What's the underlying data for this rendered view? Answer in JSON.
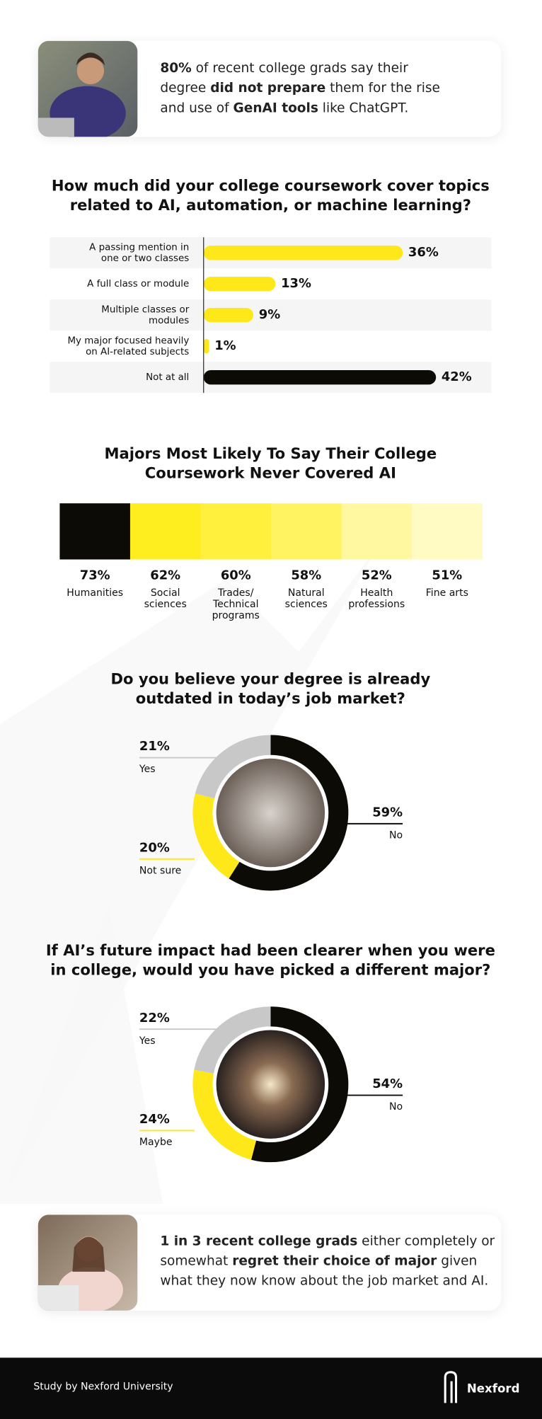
{
  "intro_card": {
    "lines": [
      [
        {
          "text": "80%",
          "bold": true
        },
        {
          "text": " of recent college grads say their"
        }
      ],
      [
        {
          "text": "degree "
        },
        {
          "text": "did not prepare",
          "bold": true
        },
        {
          "text": " them for the rise"
        }
      ],
      [
        {
          "text": "and use of "
        },
        {
          "text": "GenAI tools",
          "bold": true
        },
        {
          "text": " like ChatGPT."
        }
      ]
    ]
  },
  "chart_data": [
    {
      "type": "hbar",
      "title": "How much did your college coursework cover topics\nrelated to AI, automation, or machine learning?",
      "categories": [
        "A passing mention in\none or two classes",
        "A full class or module",
        "Multiple classes or\nmodules",
        "My major focused heavily\non AI-related subjects",
        "Not at all"
      ],
      "values": [
        36,
        13,
        9,
        1,
        42
      ],
      "value_labels": [
        "36%",
        "13%",
        "9%",
        "1%",
        "42%"
      ],
      "colors": [
        "#ffe81a",
        "#ffe81a",
        "#ffe81a",
        "#ffe81a",
        "#0d0b06"
      ],
      "xlim": [
        0,
        52
      ]
    },
    {
      "type": "strip",
      "title": "Majors Most Likely To Say Their College\nCoursework Never Covered AI",
      "categories": [
        "Humanities",
        "Social\nsciences",
        "Trades/\nTechnical\nprograms",
        "Natural\nsciences",
        "Health\nprofessions",
        "Fine arts"
      ],
      "values": [
        73,
        62,
        60,
        58,
        52,
        51
      ],
      "value_labels": [
        "73%",
        "62%",
        "60%",
        "58%",
        "52%",
        "51%"
      ],
      "colors": [
        "#0d0b06",
        "#ffee1f",
        "#fff03d",
        "#fff362",
        "#fff8a0",
        "#fffbc2"
      ]
    },
    {
      "type": "donut",
      "title": "Do you believe your degree is already\noutdated in today’s job market?",
      "categories": [
        "No",
        "Not sure",
        "Yes"
      ],
      "values": [
        59,
        20,
        21
      ],
      "value_labels": [
        "59%",
        "20%",
        "21%"
      ],
      "colors": [
        "#0d0b06",
        "#ffe81a",
        "#c8c8c8"
      ]
    },
    {
      "type": "donut",
      "title": "If AI’s future impact had been clearer when you were\nin college, would you have picked a different major?",
      "categories": [
        "No",
        "Maybe",
        "Yes"
      ],
      "values": [
        54,
        24,
        22
      ],
      "value_labels": [
        "54%",
        "24%",
        "22%"
      ],
      "colors": [
        "#0d0b06",
        "#ffe81a",
        "#c8c8c8"
      ]
    }
  ],
  "closing_card": {
    "lines": [
      [
        {
          "text": "1 in 3 recent college grads",
          "bold": true
        },
        {
          "text": " either completely or"
        }
      ],
      [
        {
          "text": "somewhat "
        },
        {
          "text": "regret their choice of major",
          "bold": true
        },
        {
          "text": " given"
        }
      ],
      [
        {
          "text": "what they now know about the job market and AI."
        }
      ]
    ]
  },
  "footer": {
    "credit": "Study by Nexford University",
    "brand": "Nexford"
  }
}
